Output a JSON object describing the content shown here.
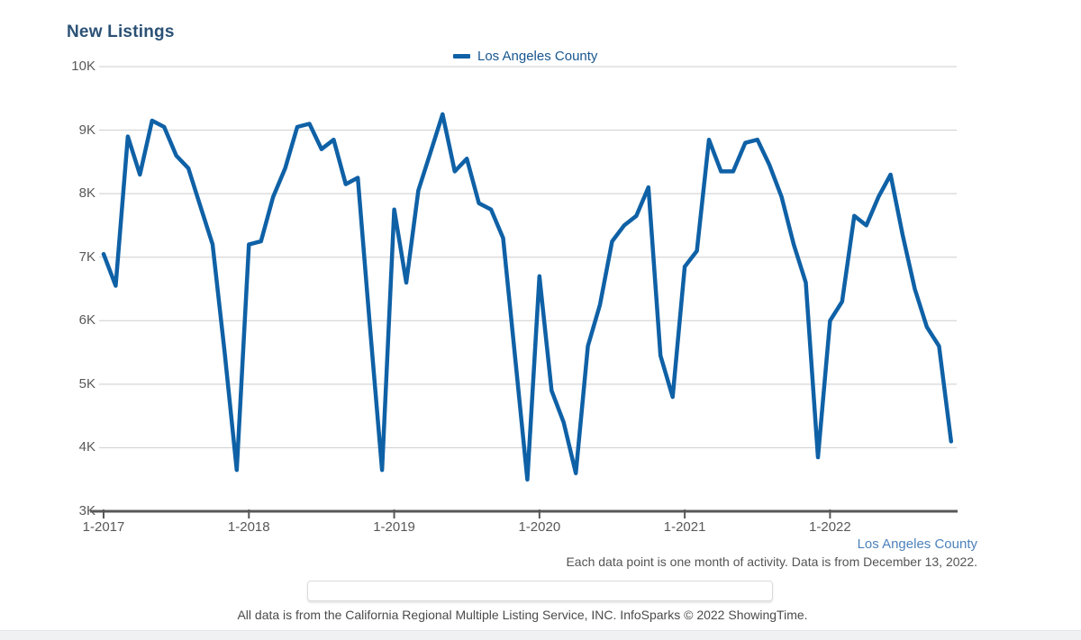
{
  "header": {
    "title": "New Listings"
  },
  "legend": {
    "label": "Los Angeles County",
    "swatch_color": "#0f61a6"
  },
  "captions": {
    "series_link": "Los Angeles County",
    "data_note": "Each data point is one month of activity. Data is from December 13, 2022.",
    "attribution": "All data is from the California Regional Multiple Listing Service, INC. InfoSparks © 2022 ShowingTime."
  },
  "colors": {
    "line": "#0f61a6",
    "title_text": "#2b5175",
    "legend_text": "#17568f",
    "link_blue": "#4d82bb",
    "axis_gray": "#58585a",
    "gridline": "#cdcdcd"
  },
  "chart_data": {
    "type": "line",
    "title": "New Listings",
    "xlabel": "",
    "ylabel": "",
    "grid": "horizontal",
    "legend_position": "top-center",
    "ylim": [
      3000,
      10000
    ],
    "y_axis": {
      "tick_values": [
        10000,
        9000,
        8000,
        7000,
        6000,
        5000,
        4000,
        3000
      ],
      "tick_labels": [
        "10K",
        "9K",
        "8K",
        "7K",
        "6K",
        "5K",
        "4K",
        "3K"
      ]
    },
    "x_axis": {
      "tick_labels": [
        "1-2017",
        "1-2018",
        "1-2019",
        "1-2020",
        "1-2021",
        "1-2022"
      ]
    },
    "months": [
      "1-2017",
      "2-2017",
      "3-2017",
      "4-2017",
      "5-2017",
      "6-2017",
      "7-2017",
      "8-2017",
      "9-2017",
      "10-2017",
      "11-2017",
      "12-2017",
      "1-2018",
      "2-2018",
      "3-2018",
      "4-2018",
      "5-2018",
      "6-2018",
      "7-2018",
      "8-2018",
      "9-2018",
      "10-2018",
      "11-2018",
      "12-2018",
      "1-2019",
      "2-2019",
      "3-2019",
      "4-2019",
      "5-2019",
      "6-2019",
      "7-2019",
      "8-2019",
      "9-2019",
      "10-2019",
      "11-2019",
      "12-2019",
      "1-2020",
      "2-2020",
      "3-2020",
      "4-2020",
      "5-2020",
      "6-2020",
      "7-2020",
      "8-2020",
      "9-2020",
      "10-2020",
      "11-2020",
      "12-2020",
      "1-2021",
      "2-2021",
      "3-2021",
      "4-2021",
      "5-2021",
      "6-2021",
      "7-2021",
      "8-2021",
      "9-2021",
      "10-2021",
      "11-2021",
      "12-2021",
      "1-2022",
      "2-2022",
      "3-2022",
      "4-2022",
      "5-2022",
      "6-2022",
      "7-2022",
      "8-2022",
      "9-2022",
      "10-2022",
      "11-2022"
    ],
    "series": [
      {
        "name": "Los Angeles County",
        "color": "#0f61a6",
        "values": [
          7050,
          6550,
          8900,
          8300,
          9150,
          9050,
          8600,
          8400,
          7800,
          7200,
          5500,
          3650,
          7200,
          7250,
          7950,
          8400,
          9050,
          9100,
          8700,
          8850,
          8150,
          8250,
          5900,
          3650,
          7750,
          6600,
          8050,
          8650,
          9250,
          8350,
          8550,
          7850,
          7750,
          7300,
          5400,
          3500,
          6700,
          4900,
          4400,
          3600,
          5600,
          6250,
          7250,
          7500,
          7650,
          8100,
          5450,
          4800,
          6850,
          7100,
          8850,
          8350,
          8350,
          8800,
          8850,
          8450,
          7950,
          7200,
          6600,
          3850,
          6000,
          6300,
          7650,
          7500,
          7950,
          8300,
          7350,
          6500,
          5900,
          5600,
          4100
        ]
      }
    ]
  }
}
